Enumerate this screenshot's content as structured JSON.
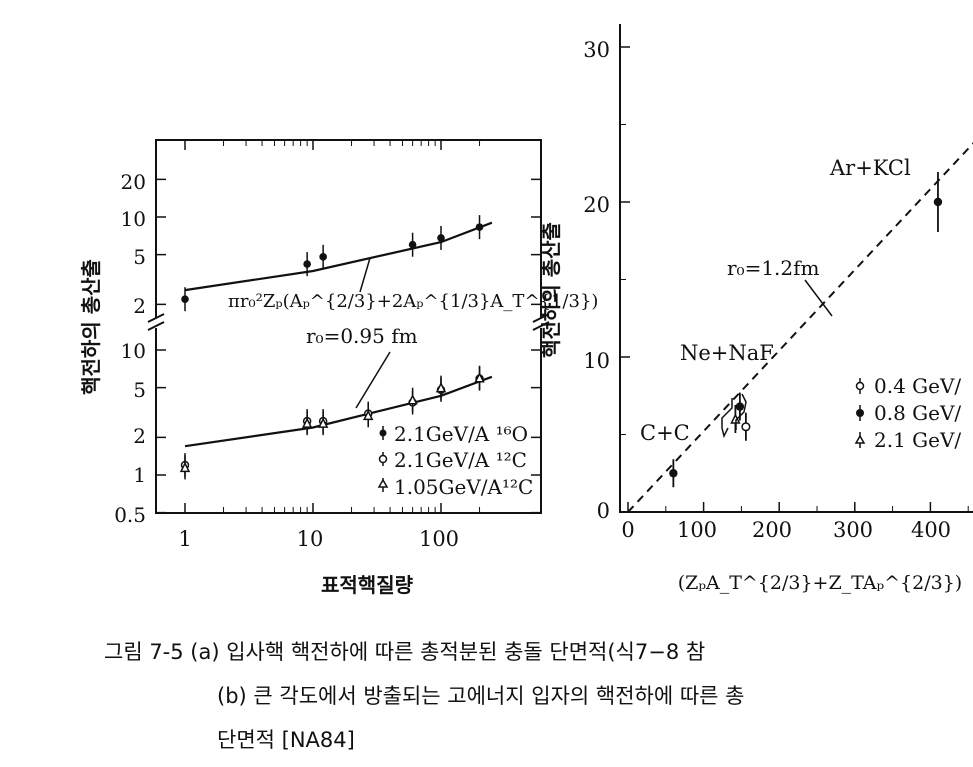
{
  "figure_a": {
    "chart_data": {
      "type": "scatter",
      "x_scale": "log",
      "y_scale": "log (broken axis)",
      "xlabel": "표적핵질량",
      "ylabel": "핵전하의 총산출",
      "x_ticks": [
        "1",
        "10",
        "100"
      ],
      "y_ticks_upper": [
        "20",
        "10",
        "5",
        "2"
      ],
      "y_ticks_lower": [
        "10",
        "5",
        "2",
        "1",
        "0.5"
      ],
      "annotations": {
        "formula": "πr₀²Zₚ(Aₚ^{2/3}+2Aₚ^{1/3}A_T^{1/3})",
        "radius": "r₀=0.95 fm"
      },
      "legend": [
        "2.1GeV/A ¹⁶O",
        "2.1GeV/A ¹²C",
        "1.05GeV/A¹²C"
      ],
      "series": [
        {
          "name": "2.1GeV/A ¹⁶O",
          "panel": "upper",
          "marker": "filled-circle",
          "points": [
            [
              1,
              2.2
            ],
            [
              9,
              4.2
            ],
            [
              12,
              4.8
            ],
            [
              60,
              6.0
            ],
            [
              100,
              6.8
            ],
            [
              200,
              8.3
            ]
          ]
        },
        {
          "name": "2.1GeV/A ¹²C",
          "panel": "lower",
          "marker": "open-circle",
          "points": [
            [
              1,
              1.2
            ],
            [
              9,
              2.7
            ],
            [
              12,
              2.7
            ],
            [
              27,
              3.1
            ],
            [
              60,
              3.8
            ],
            [
              100,
              4.8
            ],
            [
              200,
              5.9
            ]
          ]
        },
        {
          "name": "1.05GeV/A¹²C",
          "panel": "lower",
          "marker": "open-triangle",
          "points": [
            [
              1,
              1.15
            ],
            [
              9,
              2.6
            ],
            [
              12,
              2.6
            ],
            [
              27,
              3.0
            ],
            [
              60,
              4.0
            ],
            [
              100,
              5.0
            ],
            [
              200,
              6.0
            ]
          ]
        }
      ],
      "fit_lines": [
        {
          "panel": "upper",
          "points": [
            [
              1,
              2.6
            ],
            [
              10,
              3.7
            ],
            [
              100,
              6.3
            ],
            [
              250,
              9.0
            ]
          ]
        },
        {
          "panel": "lower",
          "points": [
            [
              1,
              1.7
            ],
            [
              10,
              2.4
            ],
            [
              100,
              4.3
            ],
            [
              250,
              6.1
            ]
          ]
        }
      ]
    }
  },
  "figure_b": {
    "chart_data": {
      "type": "scatter",
      "xlabel": "(ZₚA_T^{2/3}+Z_TAₚ^{2/3})",
      "ylabel": "핵전하의 총산출",
      "xlim": [
        0,
        480
      ],
      "ylim": [
        0,
        30
      ],
      "x_ticks": [
        "0",
        "100",
        "200",
        "300",
        "400"
      ],
      "y_ticks": [
        "0",
        "10",
        "20",
        "30"
      ],
      "annotations": {
        "line_label": "r₀=1.2fm",
        "systems": [
          "C+C",
          "Ne+NaF",
          "Ar+KCl"
        ]
      },
      "legend": [
        "0.4 GeV/",
        "0.8 GeV/",
        "2.1 GeV/"
      ],
      "series": [
        {
          "name": "0.4 GeV/",
          "marker": "open-circle",
          "points": [
            [
              148,
              5.5
            ]
          ]
        },
        {
          "name": "0.8 GeV/",
          "marker": "filled-circle",
          "points": [
            [
              60,
              2.5
            ],
            [
              148,
              6.8
            ],
            [
              410,
              20.0
            ]
          ]
        },
        {
          "name": "2.1 GeV/",
          "marker": "open-triangle",
          "points": [
            [
              150,
              6.0
            ]
          ]
        }
      ],
      "reference_line": {
        "style": "dashed",
        "points": [
          [
            0,
            0
          ],
          [
            480,
            25
          ]
        ]
      }
    }
  },
  "caption": {
    "line1": "그림 7-5 (a) 입사핵 핵전하에 따른 총적분된 충돌 단면적(식7−8 참",
    "line2": "(b) 큰 각도에서 방출되는 고에너지 입자의 핵전하에 따른 총",
    "line3": "단면적 [NA84]"
  }
}
